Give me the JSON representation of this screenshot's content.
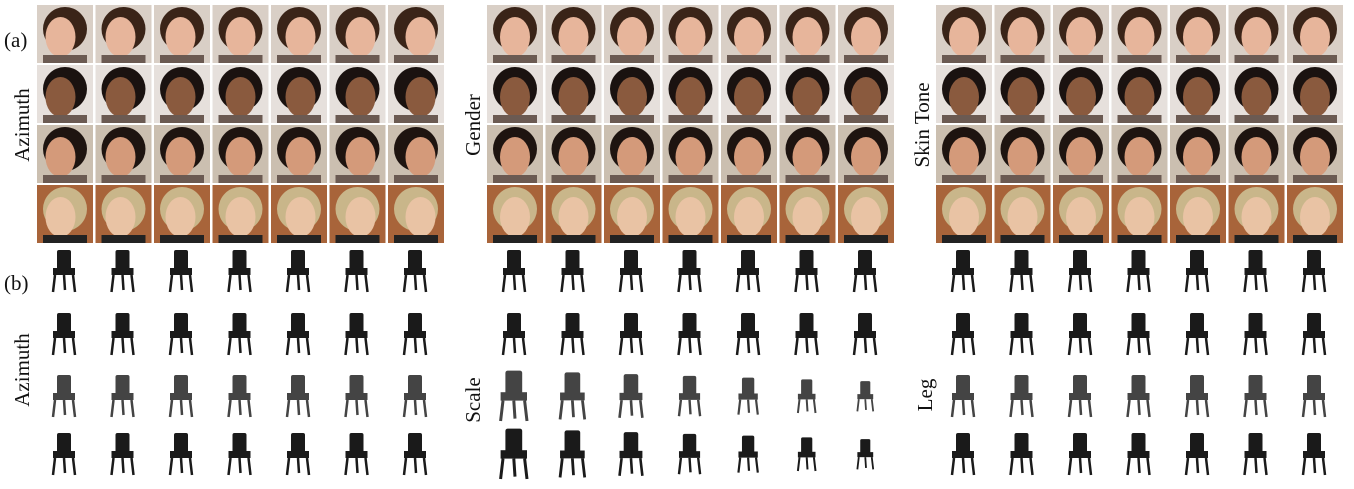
{
  "panels": [
    {
      "label": "(a)",
      "groups": [
        {
          "label": "Azimuth"
        },
        {
          "label": "Gender"
        },
        {
          "label": "Skin Tone"
        }
      ]
    },
    {
      "label": "(b)",
      "groups": [
        {
          "label": "Azimuth"
        },
        {
          "label": "Scale"
        },
        {
          "label": "Leg"
        }
      ]
    }
  ]
}
